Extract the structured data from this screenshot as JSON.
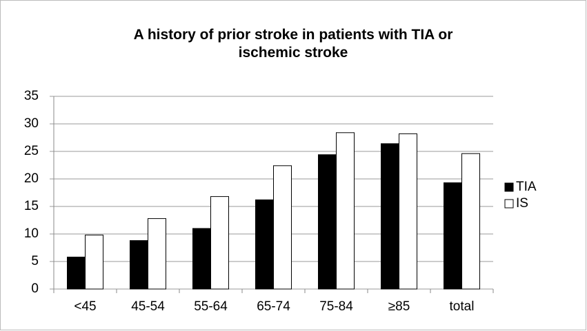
{
  "chart_data": {
    "type": "bar",
    "title": "A history of prior stroke in patients with TIA or ischemic stroke",
    "categories": [
      "<45",
      "45-54",
      "55-64",
      "65-74",
      "75-84",
      "≥85",
      "total"
    ],
    "series": [
      {
        "name": "TIA",
        "color": "#000000",
        "values": [
          5.8,
          8.8,
          11,
          16.2,
          24.4,
          26.4,
          19.3
        ]
      },
      {
        "name": "IS",
        "color": "#ffffff",
        "values": [
          9.8,
          12.8,
          16.8,
          22.4,
          28.4,
          28.2,
          24.6
        ]
      }
    ],
    "ylim": [
      0,
      35
    ],
    "yticks": [
      0,
      5,
      10,
      15,
      20,
      25,
      30,
      35
    ],
    "grid": true,
    "legend": "right"
  }
}
